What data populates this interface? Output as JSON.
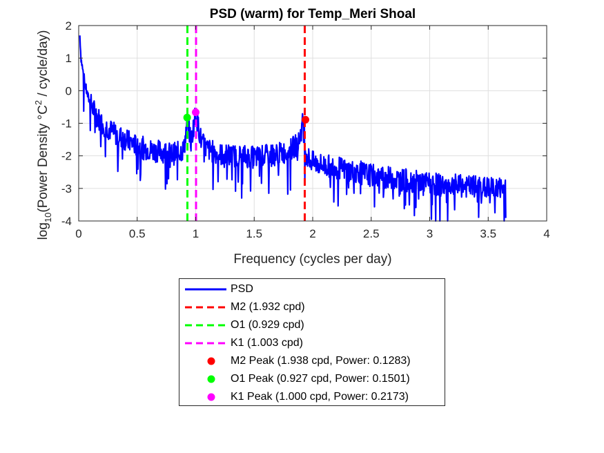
{
  "chart_data": {
    "type": "line",
    "title": "PSD (warm) for Temp_Meri Shoal",
    "xlabel": "Frequency (cycles per day)",
    "ylabel": {
      "prefix": "log",
      "sub": "10",
      "main": "(Power Density °C",
      "sup": "2",
      "tail": " / cycle/day)"
    },
    "xlim": [
      0,
      4
    ],
    "ylim": [
      -4,
      2
    ],
    "xticks": [
      0,
      0.5,
      1,
      1.5,
      2,
      2.5,
      3,
      3.5,
      4
    ],
    "xtick_labels": [
      "0",
      "0.5",
      "1",
      "1.5",
      "2",
      "2.5",
      "3",
      "3.5",
      "4"
    ],
    "yticks": [
      -4,
      -3,
      -2,
      -1,
      0,
      1,
      2
    ],
    "ytick_labels": [
      "-4",
      "-3",
      "-2",
      "-1",
      "0",
      "1",
      "2"
    ],
    "grid": true,
    "legend_position": "below",
    "series": [
      {
        "name": "PSD",
        "color": "#0000ff",
        "style": "solid",
        "x": [
          0.01,
          0.02,
          0.04,
          0.06,
          0.08,
          0.1,
          0.13,
          0.16,
          0.2,
          0.25,
          0.3,
          0.35,
          0.4,
          0.45,
          0.5,
          0.55,
          0.6,
          0.65,
          0.7,
          0.75,
          0.8,
          0.85,
          0.9,
          0.93,
          0.96,
          1.0,
          1.05,
          1.1,
          1.2,
          1.3,
          1.4,
          1.5,
          1.6,
          1.7,
          1.8,
          1.88,
          1.92,
          1.94,
          1.97,
          2.0,
          2.1,
          2.2,
          2.3,
          2.4,
          2.5,
          2.6,
          2.7,
          2.8,
          2.9,
          3.0,
          3.1,
          3.2,
          3.3,
          3.4,
          3.5,
          3.6,
          3.65
        ],
        "y": [
          1.7,
          1.0,
          0.5,
          0.1,
          -0.2,
          -0.4,
          -0.6,
          -0.8,
          -1.0,
          -1.15,
          -1.3,
          -1.4,
          -1.5,
          -1.6,
          -1.7,
          -1.75,
          -1.8,
          -1.85,
          -1.85,
          -1.9,
          -1.95,
          -1.9,
          -1.8,
          -0.85,
          -1.6,
          -0.65,
          -1.6,
          -1.8,
          -1.95,
          -2.0,
          -2.0,
          -2.05,
          -2.0,
          -1.95,
          -1.85,
          -1.6,
          -0.9,
          -1.9,
          -2.1,
          -2.2,
          -2.3,
          -2.35,
          -2.45,
          -2.5,
          -2.6,
          -2.65,
          -2.7,
          -2.75,
          -2.8,
          -2.85,
          -2.9,
          -2.9,
          -2.95,
          -2.95,
          -3.0,
          -3.0,
          -3.0
        ]
      },
      {
        "name": "M2 (1.932 cpd)",
        "color": "#ff0000",
        "style": "dashed",
        "vline_x": 1.932
      },
      {
        "name": "O1 (0.929 cpd)",
        "color": "#00ff00",
        "style": "dashed",
        "vline_x": 0.929
      },
      {
        "name": "K1 (1.003 cpd)",
        "color": "#ff00ff",
        "style": "dashed",
        "vline_x": 1.003
      },
      {
        "name": "M2 Peak (1.938 cpd, Power: 0.1283)",
        "color": "#ff0000",
        "style": "marker",
        "point": [
          1.938,
          -0.892
        ]
      },
      {
        "name": "O1 Peak (0.927 cpd, Power: 0.1501)",
        "color": "#00ff00",
        "style": "marker",
        "point": [
          0.927,
          -0.824
        ]
      },
      {
        "name": "K1 Peak (1.000 cpd, Power: 0.2173)",
        "color": "#ff00ff",
        "style": "marker",
        "point": [
          1.0,
          -0.663
        ]
      }
    ]
  }
}
